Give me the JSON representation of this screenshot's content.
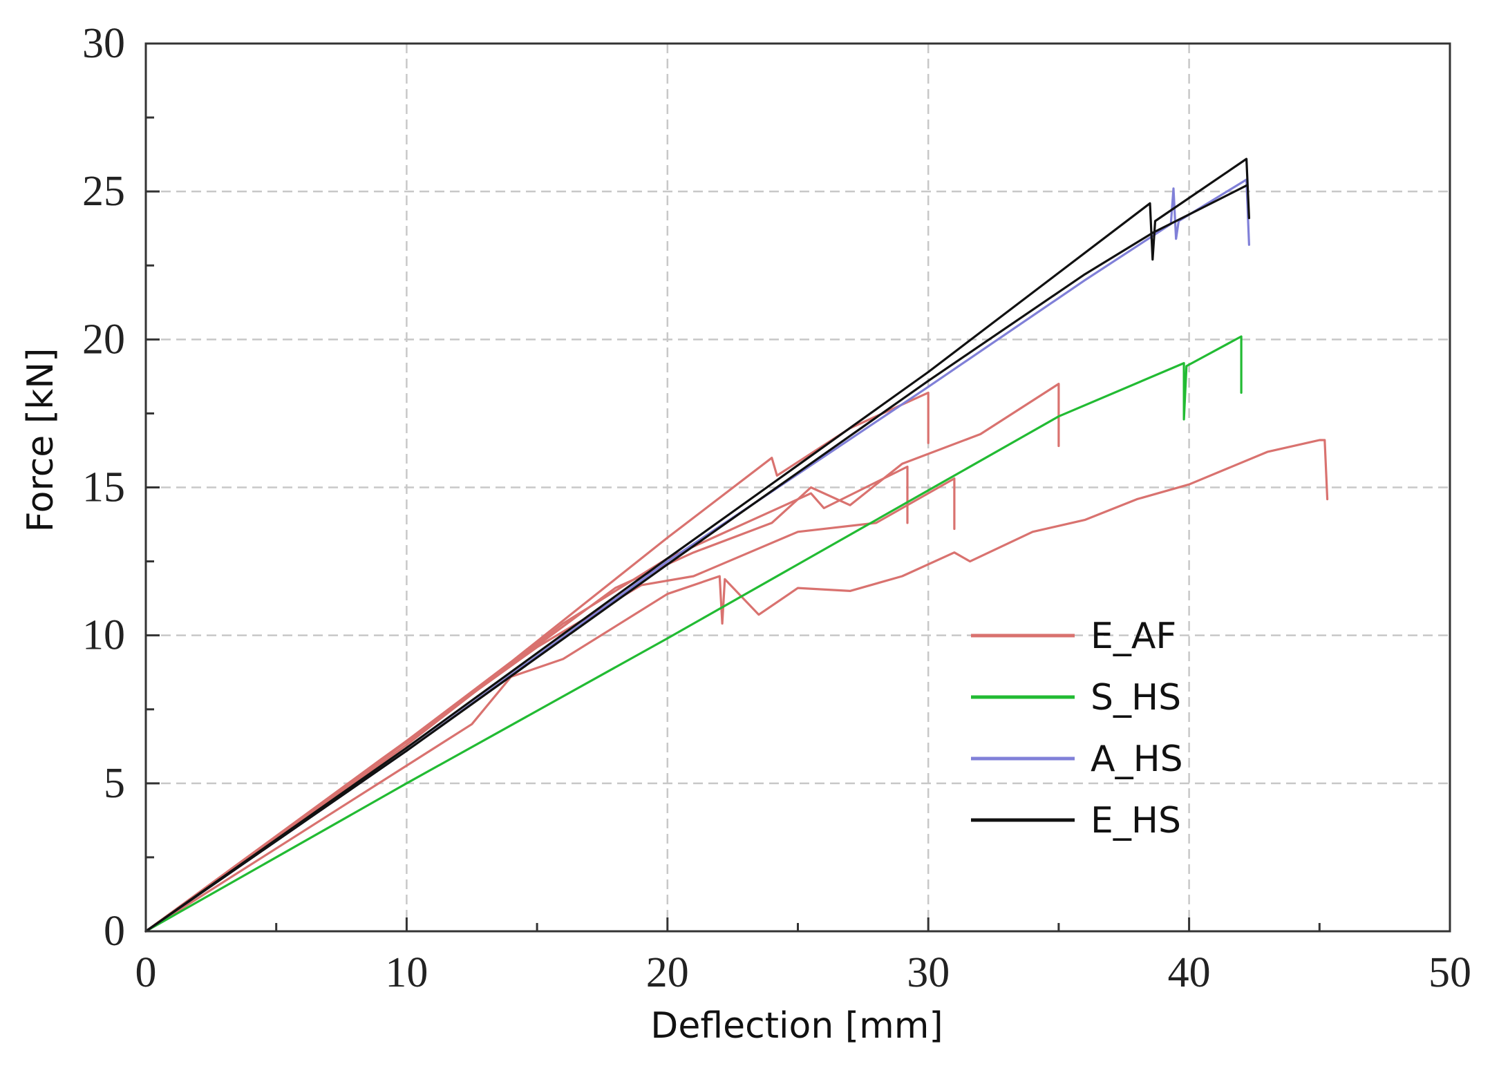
{
  "chart_data": {
    "type": "line",
    "title": "",
    "xlabel": "Deflection [mm]",
    "ylabel": "Force [kN]",
    "xlim": [
      0,
      50
    ],
    "ylim": [
      0,
      30
    ],
    "x_ticks": [
      0,
      10,
      20,
      30,
      40,
      50
    ],
    "y_ticks": [
      0,
      5,
      10,
      15,
      20,
      25,
      30
    ],
    "grid": true,
    "legend_position": "lower-right",
    "legend": [
      {
        "label": "E_AF",
        "color": "#d9726f"
      },
      {
        "label": "S_HS",
        "color": "#22bb33"
      },
      {
        "label": "A_HS",
        "color": "#8080d8"
      },
      {
        "label": "E_HS",
        "color": "#111111"
      }
    ],
    "series": [
      {
        "name": "E_AF",
        "color": "#d9726f",
        "points": [
          [
            0,
            0
          ],
          [
            8,
            5.1
          ],
          [
            14,
            9.1
          ],
          [
            20,
            13.3
          ],
          [
            24,
            16.0
          ],
          [
            24.2,
            15.4
          ],
          [
            27,
            17.0
          ],
          [
            30,
            18.2
          ],
          [
            30,
            16.5
          ]
        ]
      },
      {
        "name": "E_AF",
        "color": "#d9726f",
        "points": [
          [
            0,
            0
          ],
          [
            10,
            6.4
          ],
          [
            18,
            11.6
          ],
          [
            21,
            12.8
          ],
          [
            24,
            13.8
          ],
          [
            25.5,
            15.0
          ],
          [
            27,
            14.4
          ],
          [
            29,
            15.8
          ],
          [
            32,
            16.8
          ],
          [
            35,
            18.5
          ],
          [
            35,
            16.4
          ]
        ]
      },
      {
        "name": "E_AF",
        "color": "#d9726f",
        "points": [
          [
            0,
            0
          ],
          [
            10,
            6.3
          ],
          [
            16,
            10.4
          ],
          [
            20,
            12.6
          ],
          [
            22,
            13.4
          ],
          [
            24,
            14.2
          ],
          [
            25.5,
            14.8
          ],
          [
            26,
            14.3
          ],
          [
            29.2,
            15.7
          ],
          [
            29.2,
            13.8
          ]
        ]
      },
      {
        "name": "E_AF",
        "color": "#d9726f",
        "points": [
          [
            0,
            0
          ],
          [
            9,
            5.8
          ],
          [
            15,
            9.6
          ],
          [
            19,
            11.7
          ],
          [
            21,
            12.0
          ],
          [
            25,
            13.5
          ],
          [
            28,
            13.8
          ],
          [
            31,
            15.3
          ],
          [
            31,
            13.6
          ]
        ]
      },
      {
        "name": "E_AF",
        "color": "#d9726f",
        "points": [
          [
            0,
            0
          ],
          [
            12.5,
            7.0
          ],
          [
            14,
            8.6
          ],
          [
            16,
            9.2
          ],
          [
            18,
            10.3
          ],
          [
            20,
            11.4
          ],
          [
            22,
            12.0
          ],
          [
            22.1,
            10.4
          ],
          [
            22.2,
            11.9
          ],
          [
            23.5,
            10.7
          ],
          [
            25,
            11.6
          ],
          [
            27,
            11.5
          ],
          [
            29,
            12.0
          ],
          [
            31,
            12.8
          ],
          [
            31.6,
            12.5
          ],
          [
            34,
            13.5
          ],
          [
            36,
            13.9
          ],
          [
            38,
            14.6
          ],
          [
            40,
            15.1
          ],
          [
            43,
            16.2
          ],
          [
            45,
            16.6
          ],
          [
            45.2,
            16.6
          ],
          [
            45.3,
            14.6
          ]
        ]
      },
      {
        "name": "S_HS",
        "color": "#22bb33",
        "points": [
          [
            0,
            0
          ],
          [
            10,
            5.0
          ],
          [
            20,
            9.9
          ],
          [
            30,
            14.9
          ],
          [
            35,
            17.4
          ],
          [
            39.8,
            19.2
          ],
          [
            39.8,
            17.3
          ],
          [
            39.9,
            19.1
          ],
          [
            42,
            20.1
          ],
          [
            42,
            18.2
          ]
        ]
      },
      {
        "name": "A_HS",
        "color": "#8080d8",
        "points": [
          [
            0,
            0
          ],
          [
            10,
            6.1
          ],
          [
            20,
            12.5
          ],
          [
            30,
            18.4
          ],
          [
            36,
            22.0
          ],
          [
            39.3,
            23.9
          ],
          [
            39.4,
            25.1
          ],
          [
            39.5,
            23.4
          ],
          [
            39.6,
            24.0
          ],
          [
            42.2,
            25.4
          ],
          [
            42.3,
            23.2
          ]
        ]
      },
      {
        "name": "E_HS",
        "color": "#111111",
        "points": [
          [
            0,
            0
          ],
          [
            10,
            6.2
          ],
          [
            20,
            12.6
          ],
          [
            30,
            18.9
          ],
          [
            38.5,
            24.6
          ],
          [
            38.6,
            22.7
          ],
          [
            38.7,
            24.0
          ],
          [
            42.2,
            26.1
          ],
          [
            42.3,
            24.1
          ]
        ]
      },
      {
        "name": "E_HS",
        "color": "#111111",
        "points": [
          [
            0,
            0
          ],
          [
            10,
            6.1
          ],
          [
            20,
            12.4
          ],
          [
            30,
            18.6
          ],
          [
            36,
            22.2
          ],
          [
            38.6,
            23.6
          ],
          [
            42.2,
            25.2
          ]
        ]
      }
    ]
  }
}
